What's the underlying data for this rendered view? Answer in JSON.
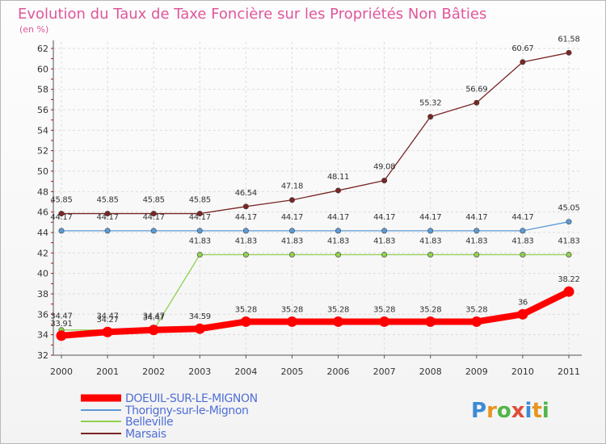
{
  "chart_data": {
    "type": "line",
    "title": "Evolution du Taux de Taxe Foncière sur les Propriétés Non Bâties",
    "subtitle": "(en %)",
    "xlabel": "",
    "ylabel": "",
    "ylim": [
      32,
      62
    ],
    "y_ticks": [
      "32",
      "34",
      "36",
      "38",
      "40",
      "42",
      "44",
      "46",
      "48",
      "50",
      "52",
      "54",
      "56",
      "58",
      "60",
      "62"
    ],
    "categories": [
      "2000",
      "2001",
      "2002",
      "2003",
      "2004",
      "2005",
      "2006",
      "2007",
      "2008",
      "2009",
      "2010",
      "2011"
    ],
    "grid": true,
    "series": [
      {
        "name": "DOEUIL-SUR-LE-MIGNON",
        "color": "#ff0000",
        "values": [
          33.91,
          34.27,
          34.47,
          34.59,
          35.28,
          35.28,
          35.28,
          35.28,
          35.28,
          35.28,
          36,
          38.22
        ],
        "labels": [
          "33.91",
          "34.27",
          "34.47",
          "34.59",
          "35.28",
          "35.28",
          "35.28",
          "35.28",
          "35.28",
          "35.28",
          "36",
          "38.22"
        ]
      },
      {
        "name": "Thorigny-sur-le-Mignon",
        "color": "#5b9bd5",
        "values": [
          44.17,
          44.17,
          44.17,
          44.17,
          44.17,
          44.17,
          44.17,
          44.17,
          44.17,
          44.17,
          44.17,
          45.05
        ],
        "labels": [
          "44.17",
          "44.17",
          "44.17",
          "44.17",
          "44.17",
          "44.17",
          "44.17",
          "44.17",
          "44.17",
          "44.17",
          "44.17",
          "45.05"
        ]
      },
      {
        "name": "Belleville",
        "color": "#90d050",
        "values": [
          34.47,
          34.47,
          34.47,
          41.83,
          41.83,
          41.83,
          41.83,
          41.83,
          41.83,
          41.83,
          41.83,
          41.83
        ],
        "labels": [
          "34.47",
          "34.47",
          "34.47",
          "41.83",
          "41.83",
          "41.83",
          "41.83",
          "41.83",
          "41.83",
          "41.83",
          "41.83",
          "41.83"
        ]
      },
      {
        "name": "Marsais",
        "color": "#7a2525",
        "values": [
          45.85,
          45.85,
          45.85,
          45.85,
          46.54,
          47.18,
          48.11,
          49.08,
          55.32,
          56.69,
          60.67,
          61.58
        ],
        "labels": [
          "45.85",
          "45.85",
          "45.85",
          "45.85",
          "46.54",
          "47.18",
          "48.11",
          "49.08",
          "55.32",
          "56.69",
          "60.67",
          "61.58"
        ]
      }
    ],
    "legend_position": "bottom-left"
  },
  "branding": {
    "logo_text": "Proxiti"
  }
}
